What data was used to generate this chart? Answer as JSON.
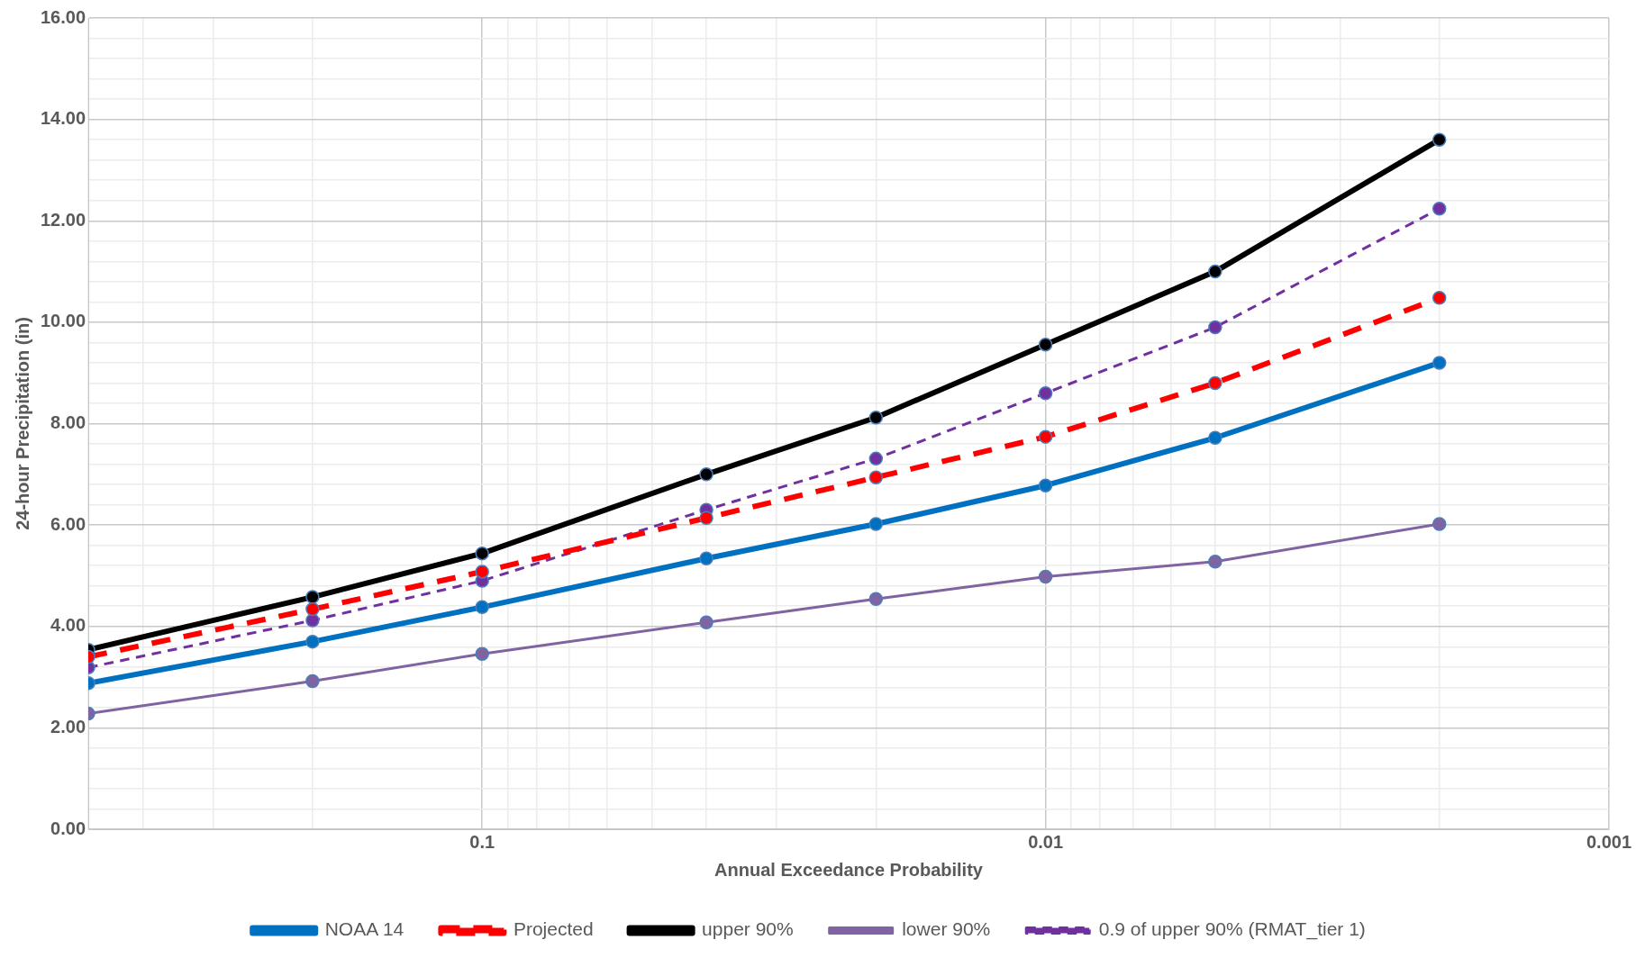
{
  "chart_data": {
    "type": "line",
    "xlabel": "Annual Exceedance Probability",
    "ylabel": "24-hour Precipitation (in)",
    "x": [
      0.5,
      0.2,
      0.1,
      0.04,
      0.02,
      0.01,
      0.005,
      0.002
    ],
    "log": "x",
    "xlim": [
      0.5,
      0.001
    ],
    "xticks": [
      {
        "value": 0.5,
        "label": null
      },
      {
        "value": 0.4,
        "label": null
      },
      {
        "value": 0.3,
        "label": null
      },
      {
        "value": 0.2,
        "label": null
      },
      {
        "value": 0.1,
        "label": "0.1"
      },
      {
        "value": 0.09,
        "label": null
      },
      {
        "value": 0.08,
        "label": null
      },
      {
        "value": 0.07,
        "label": null
      },
      {
        "value": 0.06,
        "label": null
      },
      {
        "value": 0.05,
        "label": null
      },
      {
        "value": 0.04,
        "label": null
      },
      {
        "value": 0.03,
        "label": null
      },
      {
        "value": 0.02,
        "label": null
      },
      {
        "value": 0.01,
        "label": "0.01"
      },
      {
        "value": 0.009,
        "label": null
      },
      {
        "value": 0.008,
        "label": null
      },
      {
        "value": 0.007,
        "label": null
      },
      {
        "value": 0.006,
        "label": null
      },
      {
        "value": 0.005,
        "label": null
      },
      {
        "value": 0.004,
        "label": null
      },
      {
        "value": 0.003,
        "label": null
      },
      {
        "value": 0.002,
        "label": null
      },
      {
        "value": 0.001,
        "label": "0.001"
      }
    ],
    "ylim": [
      0,
      16
    ],
    "yticks": [
      {
        "value": 0,
        "label": "0.00"
      },
      {
        "value": 0.4,
        "label": null
      },
      {
        "value": 0.8,
        "label": null
      },
      {
        "value": 1.2,
        "label": null
      },
      {
        "value": 1.6,
        "label": null
      },
      {
        "value": 2,
        "label": "2.00"
      },
      {
        "value": 2.4,
        "label": null
      },
      {
        "value": 2.8,
        "label": null
      },
      {
        "value": 3.2,
        "label": null
      },
      {
        "value": 3.6,
        "label": null
      },
      {
        "value": 4,
        "label": "4.00"
      },
      {
        "value": 4.4,
        "label": null
      },
      {
        "value": 4.8,
        "label": null
      },
      {
        "value": 5.2,
        "label": null
      },
      {
        "value": 5.6,
        "label": null
      },
      {
        "value": 6,
        "label": "6.00"
      },
      {
        "value": 6.4,
        "label": null
      },
      {
        "value": 6.8,
        "label": null
      },
      {
        "value": 7.2,
        "label": null
      },
      {
        "value": 7.6,
        "label": null
      },
      {
        "value": 8,
        "label": "8.00"
      },
      {
        "value": 8.4,
        "label": null
      },
      {
        "value": 8.8,
        "label": null
      },
      {
        "value": 9.2,
        "label": null
      },
      {
        "value": 9.6,
        "label": null
      },
      {
        "value": 10,
        "label": "10.00"
      },
      {
        "value": 10.4,
        "label": null
      },
      {
        "value": 10.8,
        "label": null
      },
      {
        "value": 11.2,
        "label": null
      },
      {
        "value": 11.6,
        "label": null
      },
      {
        "value": 12,
        "label": "12.00"
      },
      {
        "value": 12.4,
        "label": null
      },
      {
        "value": 12.8,
        "label": null
      },
      {
        "value": 13.2,
        "label": null
      },
      {
        "value": 13.6,
        "label": null
      },
      {
        "value": 14,
        "label": "14.00"
      },
      {
        "value": 14.4,
        "label": null
      },
      {
        "value": 14.8,
        "label": null
      },
      {
        "value": 15.2,
        "label": null
      },
      {
        "value": 15.6,
        "label": null
      },
      {
        "value": 16,
        "label": "16.00"
      }
    ],
    "grid": true,
    "legend": "bottom",
    "marker": "circle",
    "series": [
      {
        "name": "NOAA 14",
        "color": "#0070c0",
        "line_style": "solid",
        "values": [
          2.88,
          3.7,
          4.38,
          5.34,
          6.02,
          6.78,
          7.72,
          9.2
        ]
      },
      {
        "name": "Projected",
        "color": "#ff0000",
        "line_style": "dashed",
        "values": [
          3.4,
          4.34,
          5.08,
          6.14,
          6.94,
          7.74,
          8.8,
          10.48
        ]
      },
      {
        "name": "upper 90%",
        "color": "#000000",
        "line_style": "solid",
        "values": [
          3.54,
          4.58,
          5.44,
          7.0,
          8.12,
          9.56,
          11.0,
          13.6
        ]
      },
      {
        "name": "lower 90%",
        "color": "#8064a2",
        "line_style": "solid",
        "values": [
          2.28,
          2.92,
          3.46,
          4.08,
          4.54,
          4.98,
          5.28,
          6.02
        ]
      },
      {
        "name": "0.9 of upper 90% (RMAT_tier 1)",
        "color": "#7030a0",
        "line_style": "dashed",
        "values": [
          3.19,
          4.12,
          4.9,
          6.3,
          7.31,
          8.6,
          9.9,
          12.24
        ]
      }
    ]
  }
}
